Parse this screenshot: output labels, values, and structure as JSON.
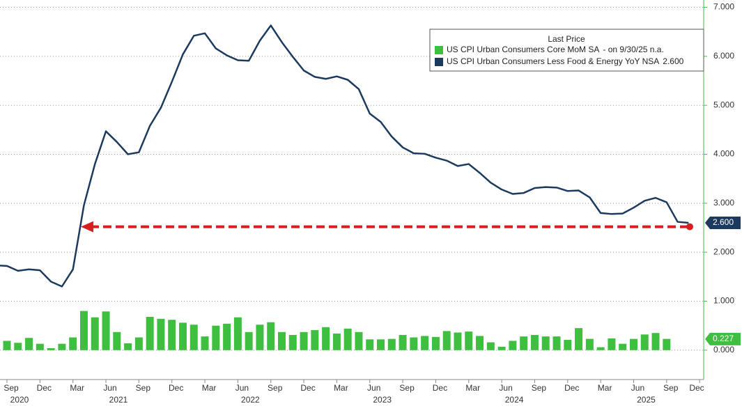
{
  "chart_data": {
    "type": "bar_line",
    "legend_title": "Last Price",
    "categories": [
      null,
      "Sep",
      null,
      null,
      "Dec",
      null,
      null,
      "Mar",
      null,
      null,
      "Jun",
      null,
      null,
      "Sep",
      null,
      null,
      "Dec",
      null,
      null,
      "Mar",
      null,
      null,
      "Jun",
      null,
      null,
      "Sep",
      null,
      null,
      "Dec",
      null,
      null,
      "Mar",
      null,
      null,
      "Jun",
      null,
      null,
      "Sep",
      null,
      null,
      "Dec",
      null,
      null,
      "Mar",
      null,
      null,
      "Jun",
      null,
      null,
      "Sep",
      null,
      null,
      "Dec",
      null,
      null,
      "Mar",
      null,
      null,
      "Jun",
      null,
      null,
      "Sep",
      null,
      null,
      "Dec"
    ],
    "years": [
      null,
      "2020",
      null,
      null,
      null,
      null,
      null,
      null,
      null,
      null,
      "2021",
      null,
      null,
      null,
      null,
      null,
      null,
      null,
      null,
      null,
      null,
      null,
      "2022",
      null,
      null,
      null,
      null,
      null,
      null,
      null,
      null,
      null,
      null,
      null,
      "2023",
      null,
      null,
      null,
      null,
      null,
      null,
      null,
      null,
      null,
      null,
      null,
      "2024",
      null,
      null,
      null,
      null,
      null,
      null,
      null,
      null,
      null,
      null,
      null,
      "2025",
      null,
      null,
      null,
      null,
      null,
      null
    ],
    "series": [
      {
        "name": "US CPI Urban Consumers Core MoM SA",
        "legend_value": "-  on 9/30/25  n.a.",
        "kind": "bar",
        "color": "#3fbf3f",
        "values": [
          0.38,
          0.19,
          0.15,
          0.25,
          0.13,
          0.04,
          0.13,
          0.26,
          0.8,
          0.67,
          0.79,
          0.37,
          0.14,
          0.26,
          0.68,
          0.64,
          0.62,
          0.56,
          0.52,
          0.28,
          0.5,
          0.54,
          0.67,
          0.37,
          0.52,
          0.57,
          0.37,
          0.31,
          0.37,
          0.41,
          0.47,
          0.34,
          0.44,
          0.37,
          0.22,
          0.22,
          0.23,
          0.31,
          0.26,
          0.29,
          0.27,
          0.39,
          0.36,
          0.38,
          0.29,
          0.16,
          0.07,
          0.19,
          0.28,
          0.31,
          0.28,
          0.28,
          0.21,
          0.45,
          0.23,
          0.06,
          0.24,
          0.13,
          0.23,
          0.32,
          0.35,
          0.23,
          null,
          null,
          null
        ],
        "last_value": 0.227
      },
      {
        "name": "US CPI Urban Consumers Less Food & Energy YoY NSA",
        "legend_value": "2.600",
        "kind": "line",
        "color": "#1c3a5e",
        "values": [
          1.73,
          1.72,
          1.62,
          1.65,
          1.63,
          1.4,
          1.3,
          1.65,
          2.96,
          3.8,
          4.47,
          4.25,
          4.0,
          4.04,
          4.58,
          4.95,
          5.48,
          6.04,
          6.42,
          6.47,
          6.16,
          6.02,
          5.92,
          5.91,
          6.32,
          6.63,
          6.29,
          5.99,
          5.71,
          5.58,
          5.54,
          5.59,
          5.52,
          5.33,
          4.83,
          4.66,
          4.36,
          4.14,
          4.02,
          4.01,
          3.93,
          3.87,
          3.76,
          3.8,
          3.62,
          3.42,
          3.28,
          3.19,
          3.21,
          3.31,
          3.33,
          3.32,
          3.25,
          3.26,
          3.12,
          2.8,
          2.78,
          2.79,
          2.91,
          3.05,
          3.11,
          3.02,
          2.62,
          2.6,
          null
        ],
        "last_value": {
          "value": 2.6,
          "label": "2.600"
        }
      }
    ],
    "reference_line": {
      "value": 2.52,
      "color": "#d42020"
    },
    "ylim": [
      -0.6,
      7.15
    ],
    "yticks": [
      {
        "value": 0,
        "label": "0.000"
      },
      {
        "value": 1,
        "label": "1.000"
      },
      {
        "value": 2,
        "label": "2.000"
      },
      {
        "value": 3,
        "label": "3.000"
      },
      {
        "value": 4,
        "label": "4.000"
      },
      {
        "value": 5,
        "label": "5.000"
      },
      {
        "value": 6,
        "label": "6.000"
      },
      {
        "value": 7,
        "label": "7.000"
      }
    ],
    "grid": true,
    "axis_color": "#3fbf3f"
  }
}
